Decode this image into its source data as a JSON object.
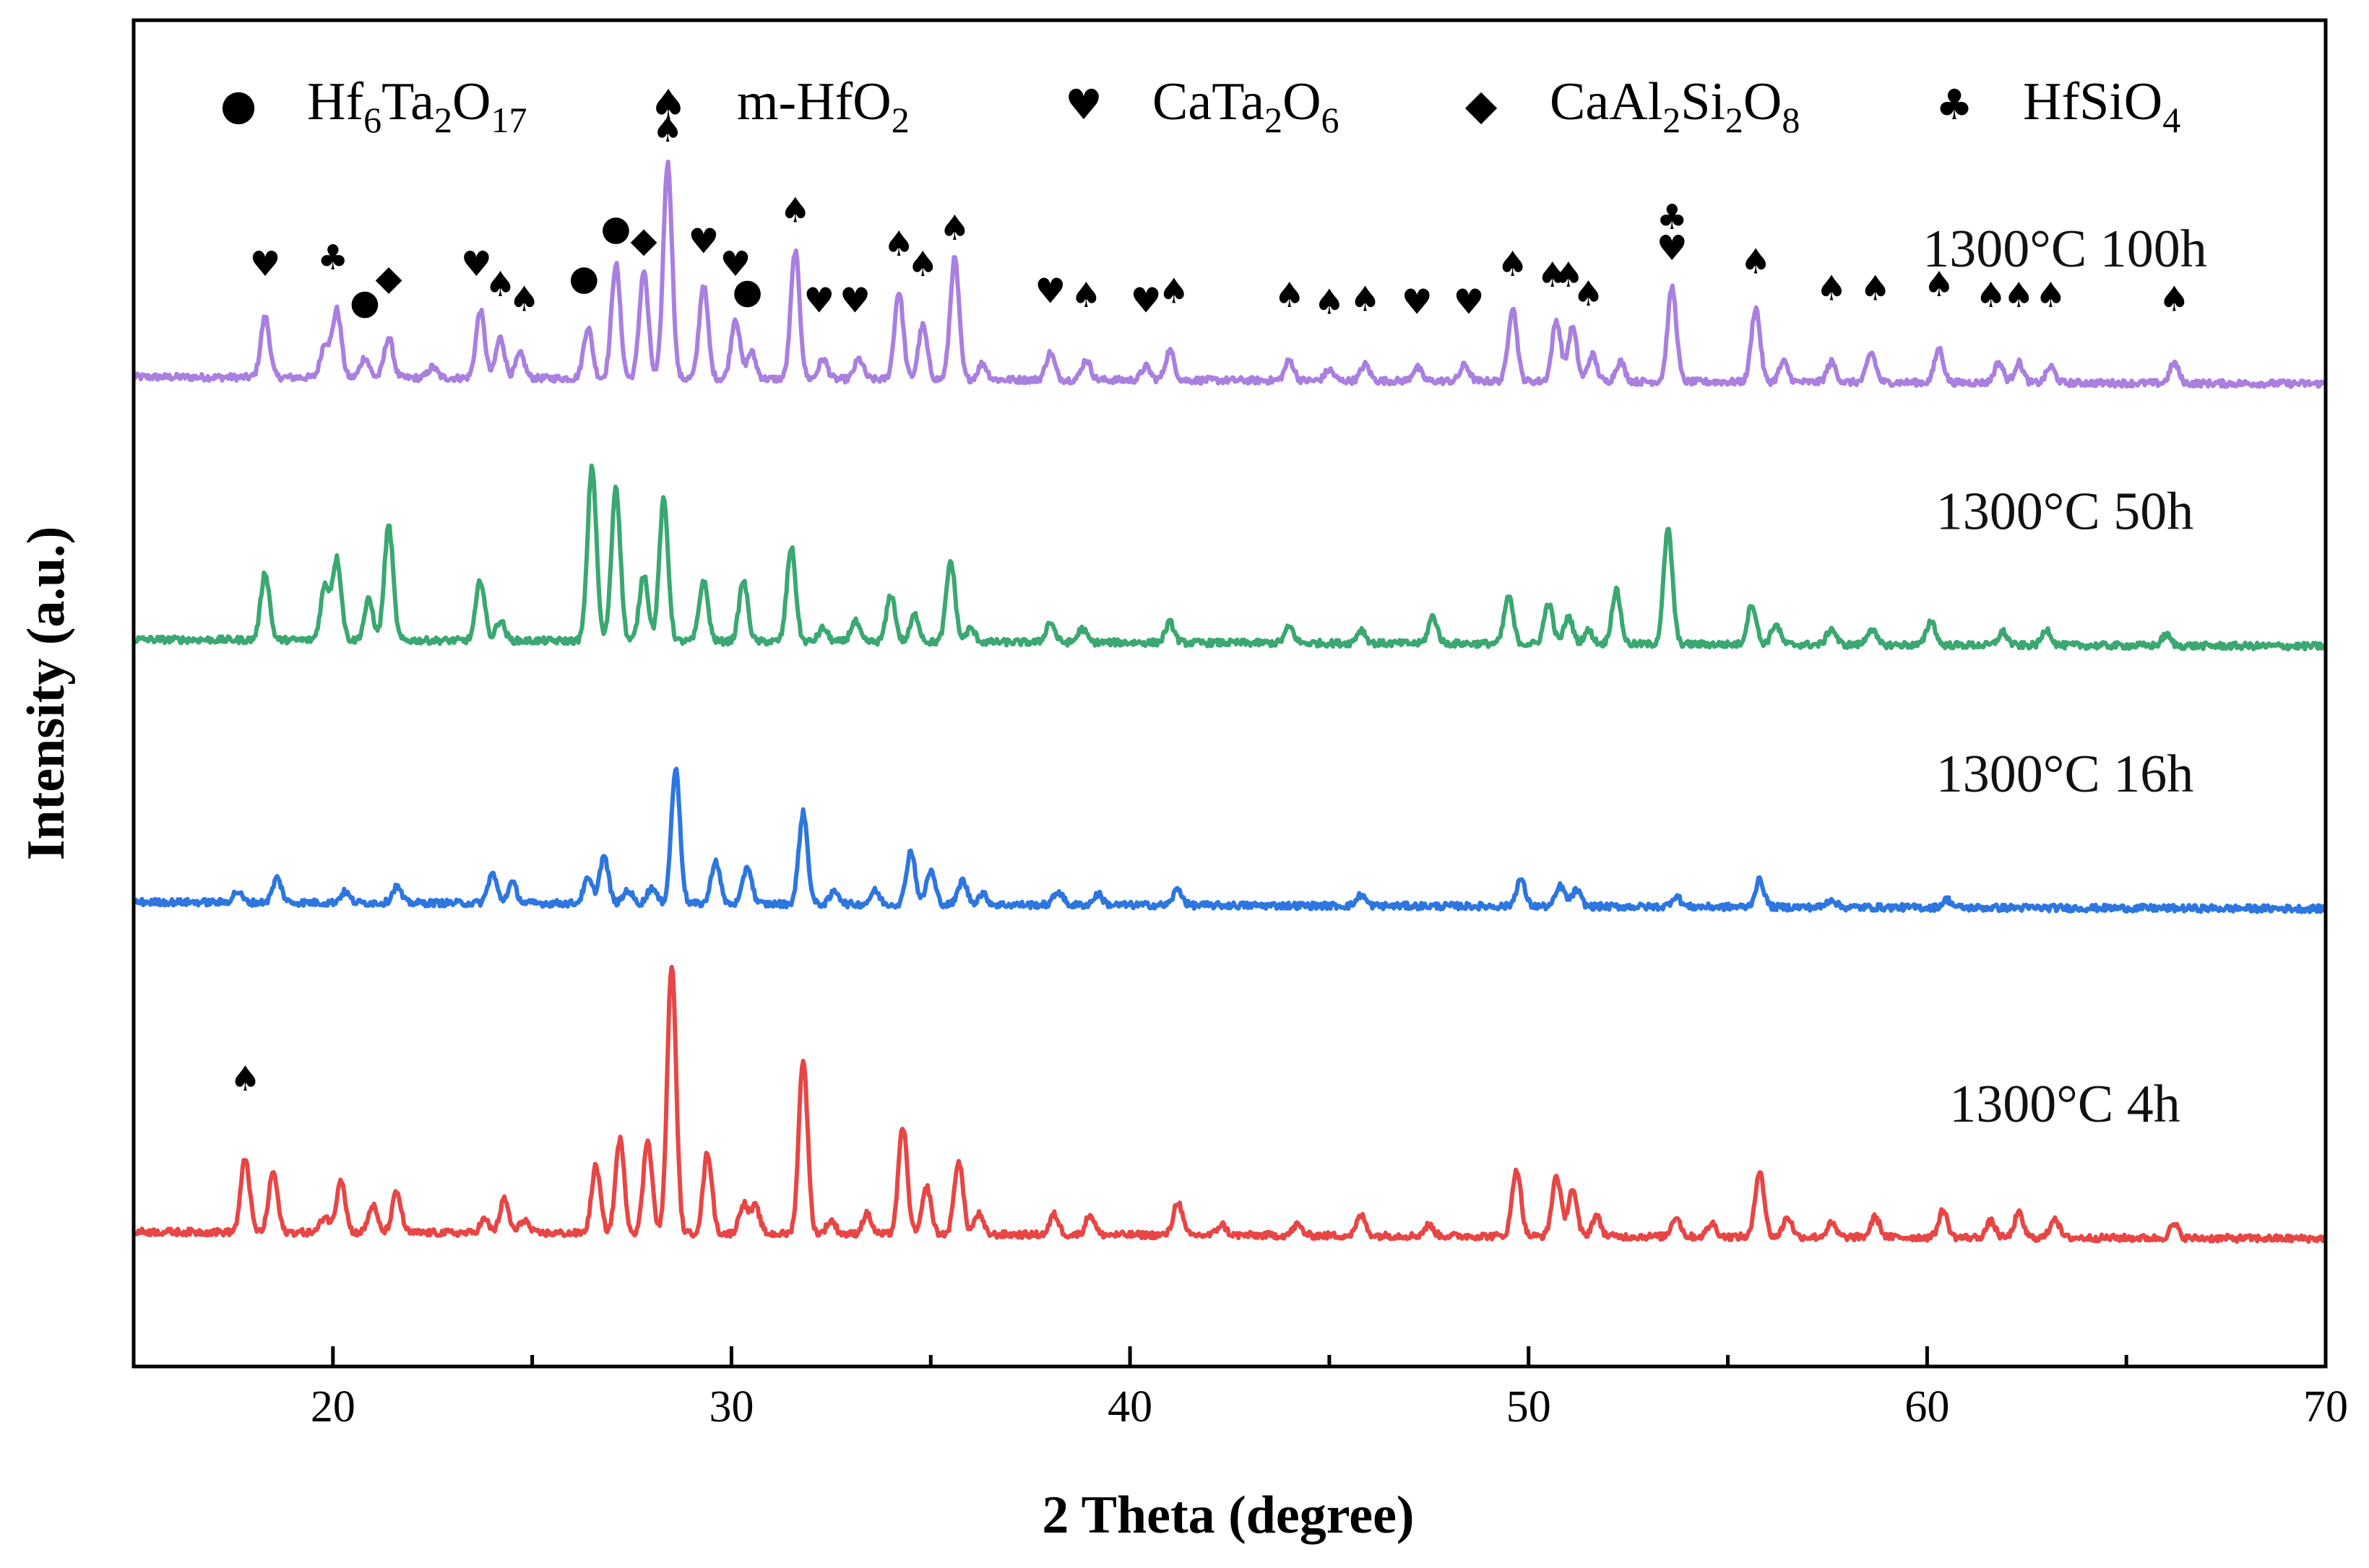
{
  "chart_data": {
    "type": "line",
    "title": "",
    "xlabel": "2 Theta (degree)",
    "ylabel": "Intensity (a.u.)",
    "xlim": [
      15,
      70
    ],
    "xticks": [
      20,
      30,
      40,
      50,
      60,
      70
    ],
    "xtick_labels": [
      "20",
      "30",
      "40",
      "50",
      "60",
      "70"
    ],
    "legend": [
      {
        "symbol": "●",
        "phase": "circle",
        "main": "Hf",
        "parts": [
          [
            "Hf",
            ""
          ],
          [
            "6",
            "sub"
          ],
          [
            "Ta",
            ""
          ],
          [
            "2",
            "sub"
          ],
          [
            "O",
            ""
          ],
          [
            "17",
            "sub"
          ]
        ],
        "label": "Hf6Ta2O17"
      },
      {
        "symbol": "♠",
        "phase": "spade",
        "main": "m-HfO",
        "parts": [
          [
            "m-HfO",
            ""
          ],
          [
            "2",
            "sub"
          ]
        ],
        "label": "m-HfO2"
      },
      {
        "symbol": "♥",
        "phase": "heart",
        "main": "CaTa",
        "parts": [
          [
            "CaTa",
            ""
          ],
          [
            "2",
            "sub"
          ],
          [
            "O",
            ""
          ],
          [
            "6",
            "sub"
          ]
        ],
        "label": "CaTa2O6"
      },
      {
        "symbol": "◆",
        "phase": "diamond",
        "main": "CaAl",
        "parts": [
          [
            "CaAl",
            ""
          ],
          [
            "2",
            "sub"
          ],
          [
            "Si",
            ""
          ],
          [
            "2",
            "sub"
          ],
          [
            "O",
            ""
          ],
          [
            "8",
            "sub"
          ]
        ],
        "label": "CaAl2Si2O8"
      },
      {
        "symbol": "♣",
        "phase": "club",
        "main": "HfSiO",
        "parts": [
          [
            "HfSiO",
            ""
          ],
          [
            "4",
            "sub"
          ]
        ],
        "label": "HfSiO4"
      }
    ],
    "series": [
      {
        "name": "1300°C 100h",
        "color": "#a97fdf",
        "offset": 0.735,
        "peaks": [
          [
            18.3,
            0.045
          ],
          [
            19.8,
            0.025
          ],
          [
            20.1,
            0.05
          ],
          [
            20.8,
            0.015
          ],
          [
            21.4,
            0.03
          ],
          [
            22.5,
            0.008
          ],
          [
            23.7,
            0.05
          ],
          [
            24.2,
            0.03
          ],
          [
            24.7,
            0.018
          ],
          [
            26.4,
            0.038
          ],
          [
            27.1,
            0.085
          ],
          [
            27.8,
            0.08
          ],
          [
            28.4,
            0.16
          ],
          [
            29.3,
            0.07
          ],
          [
            30.1,
            0.045
          ],
          [
            30.5,
            0.02
          ],
          [
            31.6,
            0.095
          ],
          [
            32.3,
            0.015
          ],
          [
            33.2,
            0.015
          ],
          [
            34.2,
            0.065
          ],
          [
            34.8,
            0.04
          ],
          [
            35.6,
            0.09
          ],
          [
            36.3,
            0.012
          ],
          [
            38.0,
            0.02
          ],
          [
            38.9,
            0.015
          ],
          [
            40.4,
            0.01
          ],
          [
            41.0,
            0.022
          ],
          [
            44.0,
            0.015
          ],
          [
            45.0,
            0.008
          ],
          [
            45.9,
            0.012
          ],
          [
            47.2,
            0.01
          ],
          [
            48.4,
            0.012
          ],
          [
            49.6,
            0.055
          ],
          [
            50.7,
            0.045
          ],
          [
            51.1,
            0.04
          ],
          [
            51.6,
            0.02
          ],
          [
            52.3,
            0.015
          ],
          [
            53.6,
            0.07
          ],
          [
            55.7,
            0.055
          ],
          [
            56.4,
            0.015
          ],
          [
            57.6,
            0.015
          ],
          [
            58.6,
            0.022
          ],
          [
            60.3,
            0.025
          ],
          [
            61.8,
            0.015
          ],
          [
            62.3,
            0.015
          ],
          [
            63.1,
            0.012
          ],
          [
            66.2,
            0.015
          ]
        ]
      },
      {
        "name": "1300°C 50h",
        "color": "#3aa870",
        "offset": 0.54,
        "peaks": [
          [
            18.3,
            0.05
          ],
          [
            19.8,
            0.04
          ],
          [
            20.1,
            0.06
          ],
          [
            20.9,
            0.03
          ],
          [
            21.4,
            0.085
          ],
          [
            23.7,
            0.045
          ],
          [
            24.2,
            0.015
          ],
          [
            26.5,
            0.13
          ],
          [
            27.1,
            0.115
          ],
          [
            27.8,
            0.05
          ],
          [
            28.3,
            0.105
          ],
          [
            29.3,
            0.045
          ],
          [
            30.3,
            0.045
          ],
          [
            31.5,
            0.07
          ],
          [
            32.3,
            0.01
          ],
          [
            33.1,
            0.015
          ],
          [
            34.0,
            0.035
          ],
          [
            34.6,
            0.02
          ],
          [
            35.5,
            0.06
          ],
          [
            36.0,
            0.01
          ],
          [
            38.0,
            0.015
          ],
          [
            38.8,
            0.01
          ],
          [
            41.0,
            0.015
          ],
          [
            44.0,
            0.012
          ],
          [
            45.8,
            0.01
          ],
          [
            47.6,
            0.02
          ],
          [
            49.5,
            0.035
          ],
          [
            50.5,
            0.03
          ],
          [
            51.0,
            0.02
          ],
          [
            51.5,
            0.01
          ],
          [
            52.2,
            0.04
          ],
          [
            53.5,
            0.085
          ],
          [
            55.6,
            0.03
          ],
          [
            56.2,
            0.015
          ],
          [
            57.6,
            0.012
          ],
          [
            58.6,
            0.012
          ],
          [
            60.1,
            0.018
          ],
          [
            61.9,
            0.01
          ],
          [
            63.0,
            0.012
          ],
          [
            66.0,
            0.008
          ]
        ]
      },
      {
        "name": "1300°C 16h",
        "color": "#2d76e0",
        "offset": 0.345,
        "peaks": [
          [
            17.6,
            0.008
          ],
          [
            18.6,
            0.018
          ],
          [
            20.3,
            0.008
          ],
          [
            21.6,
            0.012
          ],
          [
            24.0,
            0.022
          ],
          [
            24.5,
            0.015
          ],
          [
            26.4,
            0.018
          ],
          [
            26.8,
            0.035
          ],
          [
            27.4,
            0.01
          ],
          [
            28.0,
            0.012
          ],
          [
            28.6,
            0.1
          ],
          [
            29.6,
            0.032
          ],
          [
            30.4,
            0.028
          ],
          [
            31.8,
            0.068
          ],
          [
            32.6,
            0.01
          ],
          [
            33.6,
            0.01
          ],
          [
            34.5,
            0.04
          ],
          [
            35.0,
            0.025
          ],
          [
            35.8,
            0.018
          ],
          [
            36.3,
            0.008
          ],
          [
            38.2,
            0.01
          ],
          [
            39.2,
            0.008
          ],
          [
            41.2,
            0.012
          ],
          [
            45.8,
            0.008
          ],
          [
            49.8,
            0.02
          ],
          [
            50.8,
            0.015
          ],
          [
            51.2,
            0.012
          ],
          [
            53.7,
            0.008
          ],
          [
            55.8,
            0.02
          ],
          [
            57.6,
            0.006
          ],
          [
            60.5,
            0.006
          ]
        ]
      },
      {
        "name": "1300°C 4h",
        "color": "#e84545",
        "offset": 0.1,
        "peaks": [
          [
            17.8,
            0.055
          ],
          [
            18.5,
            0.045
          ],
          [
            19.8,
            0.012
          ],
          [
            20.2,
            0.04
          ],
          [
            21.0,
            0.02
          ],
          [
            21.6,
            0.03
          ],
          [
            23.8,
            0.01
          ],
          [
            24.3,
            0.025
          ],
          [
            24.8,
            0.01
          ],
          [
            26.6,
            0.05
          ],
          [
            27.2,
            0.07
          ],
          [
            27.9,
            0.07
          ],
          [
            28.5,
            0.2
          ],
          [
            29.4,
            0.06
          ],
          [
            30.3,
            0.022
          ],
          [
            30.6,
            0.02
          ],
          [
            31.8,
            0.13
          ],
          [
            32.5,
            0.01
          ],
          [
            33.4,
            0.015
          ],
          [
            34.3,
            0.08
          ],
          [
            34.9,
            0.035
          ],
          [
            35.7,
            0.055
          ],
          [
            36.2,
            0.015
          ],
          [
            38.1,
            0.015
          ],
          [
            39.0,
            0.015
          ],
          [
            41.2,
            0.025
          ],
          [
            42.3,
            0.008
          ],
          [
            44.2,
            0.008
          ],
          [
            45.8,
            0.015
          ],
          [
            47.5,
            0.008
          ],
          [
            49.7,
            0.05
          ],
          [
            50.7,
            0.045
          ],
          [
            51.1,
            0.035
          ],
          [
            51.7,
            0.015
          ],
          [
            53.7,
            0.015
          ],
          [
            54.6,
            0.01
          ],
          [
            55.8,
            0.05
          ],
          [
            56.5,
            0.015
          ],
          [
            57.6,
            0.01
          ],
          [
            58.7,
            0.015
          ],
          [
            60.4,
            0.02
          ],
          [
            61.6,
            0.012
          ],
          [
            62.3,
            0.018
          ],
          [
            63.2,
            0.015
          ],
          [
            66.2,
            0.01
          ]
        ]
      }
    ],
    "phase_markers": [
      {
        "x": 18.3,
        "level": 0.81,
        "sym": "♥"
      },
      {
        "x": 20.0,
        "level": 0.815,
        "sym": "♣"
      },
      {
        "x": 20.8,
        "level": 0.782,
        "sym": "●"
      },
      {
        "x": 21.4,
        "level": 0.8,
        "sym": "◆"
      },
      {
        "x": 23.6,
        "level": 0.81,
        "sym": "♥"
      },
      {
        "x": 24.2,
        "level": 0.795,
        "sym": "♠"
      },
      {
        "x": 24.8,
        "level": 0.784,
        "sym": "♠"
      },
      {
        "x": 26.3,
        "level": 0.8,
        "sym": "●"
      },
      {
        "x": 27.1,
        "level": 0.837,
        "sym": "●"
      },
      {
        "x": 27.8,
        "level": 0.828,
        "sym": "◆"
      },
      {
        "x": 28.4,
        "level": 0.91,
        "sym": "♠"
      },
      {
        "x": 29.3,
        "level": 0.827,
        "sym": "♥"
      },
      {
        "x": 30.1,
        "level": 0.81,
        "sym": "♥"
      },
      {
        "x": 30.4,
        "level": 0.79,
        "sym": "●"
      },
      {
        "x": 31.6,
        "level": 0.85,
        "sym": "♠"
      },
      {
        "x": 32.2,
        "level": 0.783,
        "sym": "♥"
      },
      {
        "x": 33.1,
        "level": 0.783,
        "sym": "♥"
      },
      {
        "x": 34.2,
        "level": 0.825,
        "sym": "♠"
      },
      {
        "x": 34.8,
        "level": 0.81,
        "sym": "♠"
      },
      {
        "x": 35.6,
        "level": 0.837,
        "sym": "♠"
      },
      {
        "x": 38.0,
        "level": 0.79,
        "sym": "♥"
      },
      {
        "x": 38.9,
        "level": 0.787,
        "sym": "♠"
      },
      {
        "x": 40.4,
        "level": 0.783,
        "sym": "♥"
      },
      {
        "x": 41.1,
        "level": 0.79,
        "sym": "♠"
      },
      {
        "x": 44.0,
        "level": 0.787,
        "sym": "♠"
      },
      {
        "x": 45.0,
        "level": 0.782,
        "sym": "♠"
      },
      {
        "x": 45.9,
        "level": 0.784,
        "sym": "♠"
      },
      {
        "x": 47.2,
        "level": 0.782,
        "sym": "♥"
      },
      {
        "x": 48.5,
        "level": 0.782,
        "sym": "♥"
      },
      {
        "x": 49.6,
        "level": 0.81,
        "sym": "♠"
      },
      {
        "x": 50.6,
        "level": 0.802,
        "sym": "♠"
      },
      {
        "x": 51.0,
        "level": 0.802,
        "sym": "♠"
      },
      {
        "x": 51.5,
        "level": 0.788,
        "sym": "♠"
      },
      {
        "x": 53.6,
        "level": 0.845,
        "sym": "♣"
      },
      {
        "x": 53.6,
        "level": 0.822,
        "sym": "♥"
      },
      {
        "x": 55.7,
        "level": 0.812,
        "sym": "♠"
      },
      {
        "x": 57.6,
        "level": 0.792,
        "sym": "♠"
      },
      {
        "x": 58.7,
        "level": 0.792,
        "sym": "♠"
      },
      {
        "x": 60.3,
        "level": 0.795,
        "sym": "♠"
      },
      {
        "x": 61.6,
        "level": 0.787,
        "sym": "♠"
      },
      {
        "x": 62.3,
        "level": 0.787,
        "sym": "♠"
      },
      {
        "x": 63.1,
        "level": 0.787,
        "sym": "♠"
      },
      {
        "x": 66.2,
        "level": 0.784,
        "sym": "♠"
      },
      {
        "x": 17.8,
        "level": 0.205,
        "sym": "♠"
      }
    ]
  }
}
